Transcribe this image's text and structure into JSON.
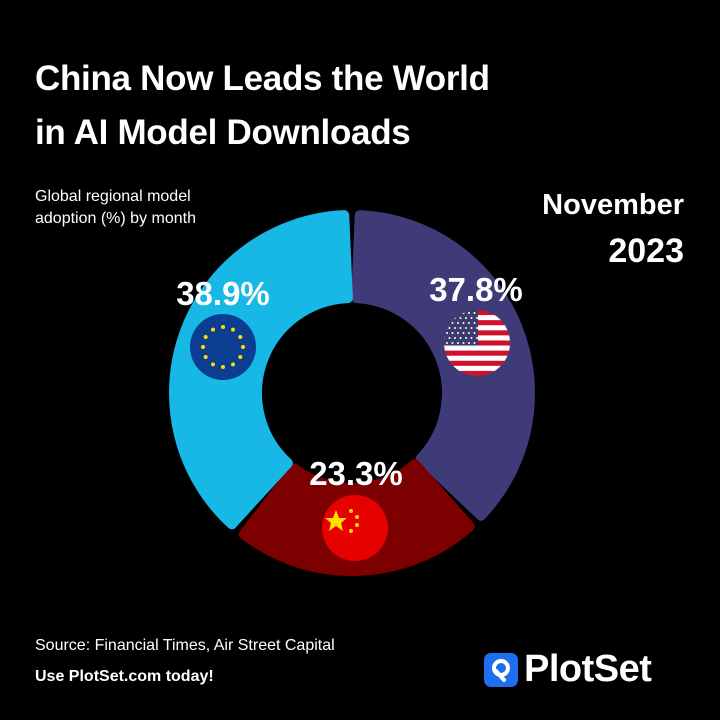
{
  "title_lines": [
    "China Now Leads the World",
    "in AI Model Downloads"
  ],
  "subtitle": "Global regional model adoption (%) by month",
  "period": {
    "month": "November",
    "year": "2023"
  },
  "source": "Source: Financial Times, Air Street Capital",
  "cta": "Use PlotSet.com today!",
  "brand": {
    "name": "PlotSet",
    "color": "#1e6ff0"
  },
  "chart_data": {
    "type": "pie",
    "variant": "donut",
    "series": [
      {
        "region": "United States",
        "icon": "us-flag-icon",
        "value": 37.8,
        "label": "37.8%",
        "color": "#3f3a78"
      },
      {
        "region": "China",
        "icon": "china-flag-icon",
        "value": 23.3,
        "label": "23.3%",
        "color": "#7d0000"
      },
      {
        "region": "European Union",
        "icon": "eu-flag-icon",
        "value": 38.9,
        "label": "38.9%",
        "color": "#18b8e6"
      }
    ]
  }
}
